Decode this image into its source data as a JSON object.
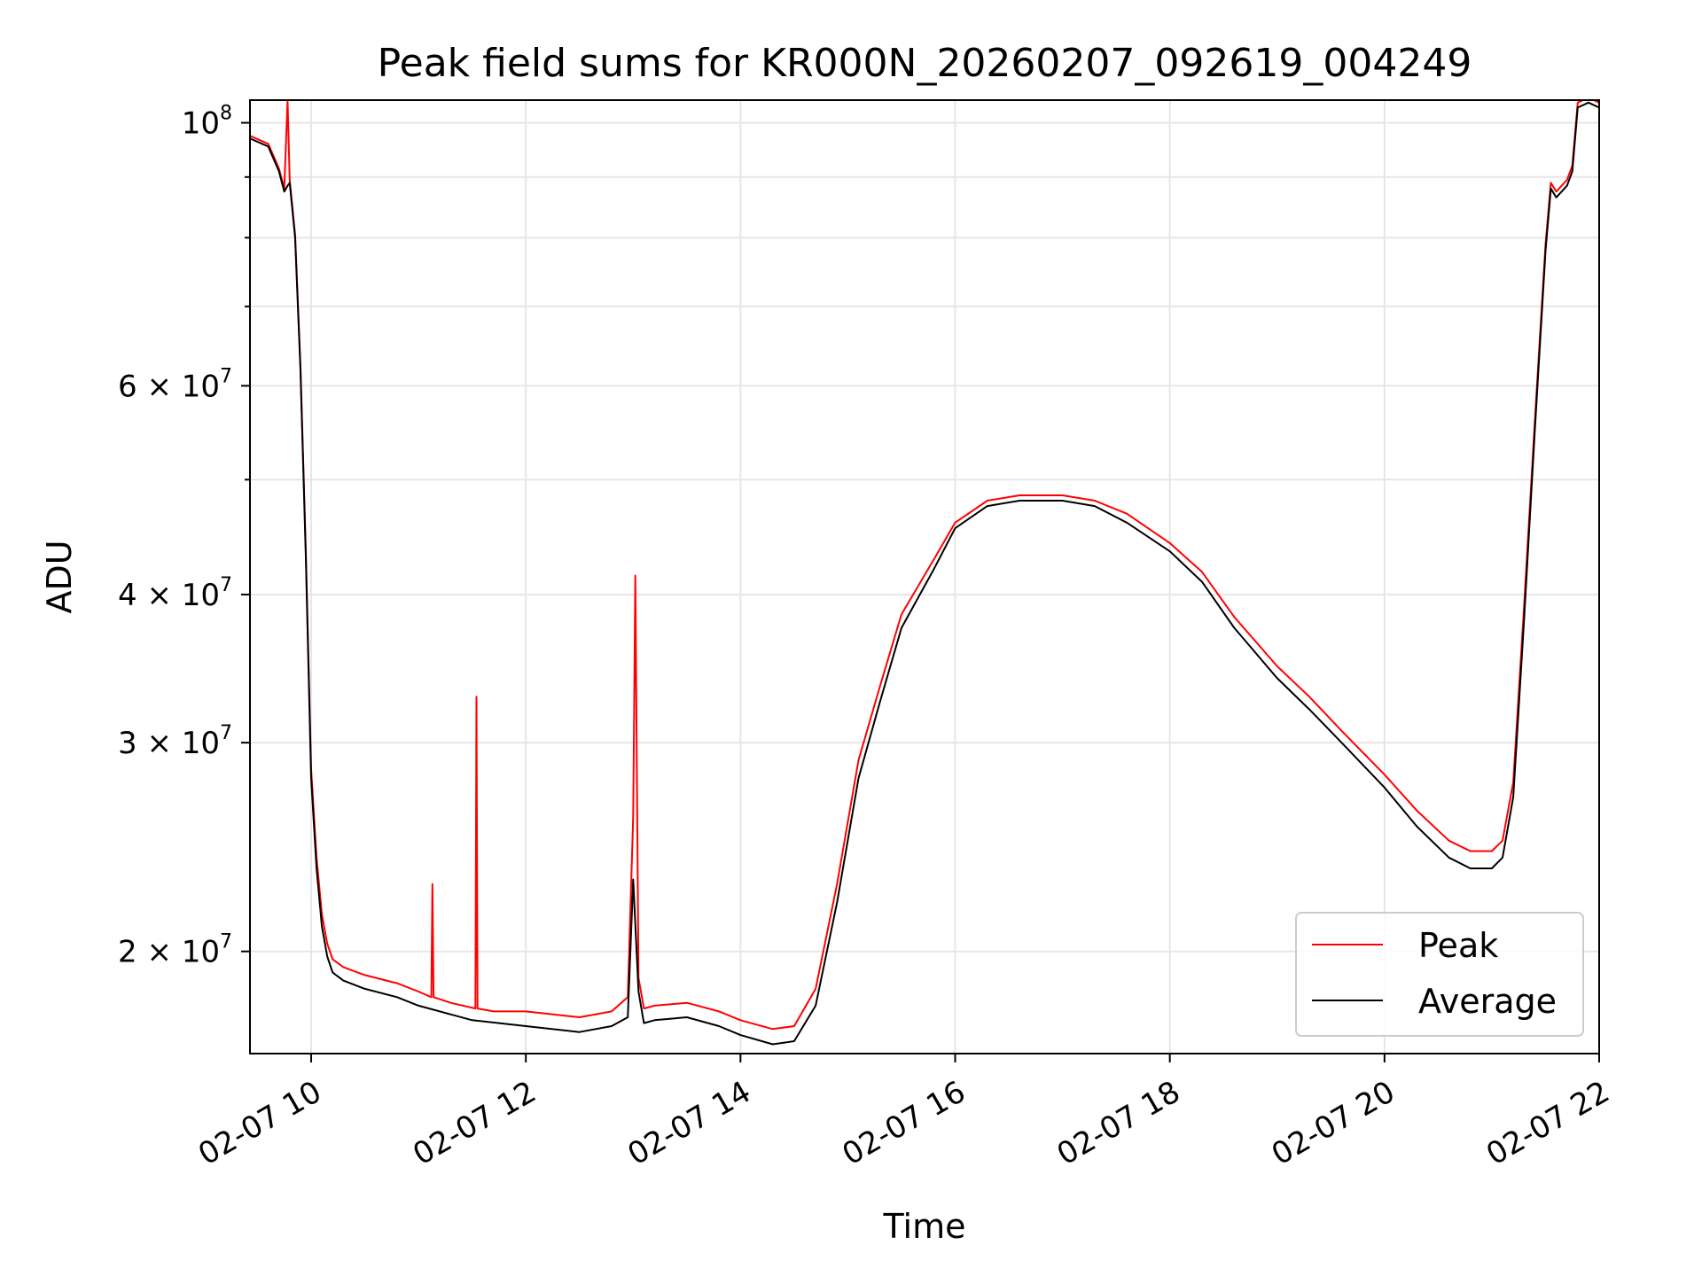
{
  "chart_data": {
    "type": "line",
    "title": "Peak field sums for KR000N_20260207_092619_004249",
    "xlabel": "Time",
    "ylabel": "ADU",
    "yscale": "log",
    "xlim": [
      9.43,
      22.0
    ],
    "ylim": [
      16400000,
      104500000
    ],
    "x_ticks": [
      {
        "value": 10,
        "label": "02-07 10"
      },
      {
        "value": 12,
        "label": "02-07 12"
      },
      {
        "value": 14,
        "label": "02-07 14"
      },
      {
        "value": 16,
        "label": "02-07 16"
      },
      {
        "value": 18,
        "label": "02-07 18"
      },
      {
        "value": 20,
        "label": "02-07 20"
      },
      {
        "value": 22,
        "label": "02-07 22"
      }
    ],
    "y_major_ticks": [
      {
        "value": 100000000,
        "base": "10",
        "exp": "8"
      },
      {
        "value": 60000000,
        "base": "6 × 10",
        "exp": "7"
      },
      {
        "value": 40000000,
        "base": "4 × 10",
        "exp": "7"
      },
      {
        "value": 30000000,
        "base": "3 × 10",
        "exp": "7"
      },
      {
        "value": 20000000,
        "base": "2 × 10",
        "exp": "7"
      }
    ],
    "y_minor_ticks": [
      90000000,
      80000000,
      70000000,
      50000000
    ],
    "grid": true,
    "legend_position": "lower-right",
    "series": [
      {
        "name": "Average",
        "color": "#000000",
        "x": [
          9.43,
          9.6,
          9.7,
          9.75,
          9.78,
          9.8,
          9.85,
          9.9,
          9.95,
          10.0,
          10.05,
          10.1,
          10.15,
          10.2,
          10.3,
          10.5,
          10.8,
          11.0,
          11.5,
          12.0,
          12.5,
          12.8,
          12.95,
          13.0,
          13.05,
          13.1,
          13.2,
          13.5,
          13.8,
          14.0,
          14.3,
          14.5,
          14.7,
          14.9,
          15.1,
          15.3,
          15.5,
          15.8,
          16.0,
          16.3,
          16.6,
          17.0,
          17.3,
          17.6,
          18.0,
          18.3,
          18.6,
          19.0,
          19.3,
          19.6,
          20.0,
          20.3,
          20.6,
          20.8,
          21.0,
          21.1,
          21.2,
          21.3,
          21.4,
          21.5,
          21.55,
          21.6,
          21.7,
          21.75,
          21.8,
          21.9,
          22.0
        ],
        "values": [
          97000000,
          95500000,
          91000000,
          87500000,
          88500000,
          89000000,
          80000000,
          62000000,
          43000000,
          28000000,
          23500000,
          21000000,
          19800000,
          19200000,
          18900000,
          18600000,
          18300000,
          18000000,
          17500000,
          17300000,
          17100000,
          17300000,
          17600000,
          23000000,
          18500000,
          17400000,
          17500000,
          17600000,
          17300000,
          17000000,
          16700000,
          16800000,
          18000000,
          22000000,
          28000000,
          32500000,
          37500000,
          42000000,
          45500000,
          47500000,
          48000000,
          48000000,
          47500000,
          46000000,
          43500000,
          41000000,
          37500000,
          34000000,
          32000000,
          30000000,
          27500000,
          25500000,
          24000000,
          23500000,
          23500000,
          24000000,
          27000000,
          38000000,
          55000000,
          78000000,
          88000000,
          86500000,
          88500000,
          91000000,
          103000000,
          104000000,
          103000000
        ]
      },
      {
        "name": "Peak",
        "color": "#ff0000",
        "x": [
          9.43,
          9.6,
          9.7,
          9.75,
          9.78,
          9.8,
          9.85,
          9.9,
          9.95,
          10.0,
          10.05,
          10.1,
          10.15,
          10.2,
          10.3,
          10.5,
          10.8,
          11.0,
          11.12,
          11.13,
          11.14,
          11.3,
          11.53,
          11.54,
          11.55,
          11.7,
          12.0,
          12.5,
          12.8,
          12.95,
          13.0,
          13.02,
          13.05,
          13.1,
          13.2,
          13.5,
          13.8,
          14.0,
          14.3,
          14.5,
          14.7,
          14.9,
          15.1,
          15.3,
          15.5,
          15.8,
          16.0,
          16.3,
          16.6,
          17.0,
          17.3,
          17.6,
          18.0,
          18.3,
          18.6,
          19.0,
          19.3,
          19.6,
          20.0,
          20.3,
          20.6,
          20.8,
          21.0,
          21.1,
          21.2,
          21.3,
          21.4,
          21.5,
          21.55,
          21.6,
          21.7,
          21.75,
          21.8,
          21.9,
          22.0
        ],
        "values": [
          97500000,
          96000000,
          91500000,
          88000000,
          104500000,
          89500000,
          80500000,
          62500000,
          43500000,
          28500000,
          24000000,
          21500000,
          20300000,
          19700000,
          19400000,
          19100000,
          18800000,
          18500000,
          18300000,
          22800000,
          18300000,
          18100000,
          17900000,
          32800000,
          17900000,
          17800000,
          17800000,
          17600000,
          17800000,
          18300000,
          26000000,
          41500000,
          19000000,
          17900000,
          18000000,
          18100000,
          17800000,
          17500000,
          17200000,
          17300000,
          18600000,
          22800000,
          29000000,
          33500000,
          38500000,
          42800000,
          46000000,
          48000000,
          48500000,
          48500000,
          48000000,
          46800000,
          44200000,
          41800000,
          38300000,
          34800000,
          32800000,
          30700000,
          28200000,
          26300000,
          24800000,
          24300000,
          24300000,
          24800000,
          27800000,
          39000000,
          56000000,
          79000000,
          89000000,
          87500000,
          89500000,
          92000000,
          104000000,
          105000000,
          104000000
        ]
      }
    ]
  }
}
